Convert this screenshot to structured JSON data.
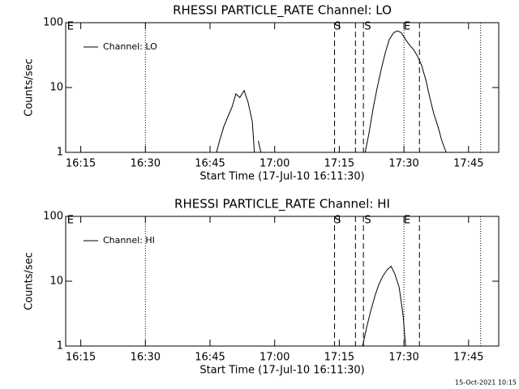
{
  "chart_data": [
    {
      "type": "line",
      "title": "RHESSI PARTICLE_RATE Channel: LO",
      "xlabel": "Start Time (17-Jul-10 16:11:30)",
      "ylabel": "Counts/sec",
      "xlim": [
        971.5,
        1072
      ],
      "xticks": [
        {
          "value": 975,
          "label": "16:15"
        },
        {
          "value": 990,
          "label": "16:30"
        },
        {
          "value": 1005,
          "label": "16:45"
        },
        {
          "value": 1020,
          "label": "17:00"
        },
        {
          "value": 1035,
          "label": "17:15"
        },
        {
          "value": 1050,
          "label": "17:30"
        },
        {
          "value": 1065,
          "label": "17:45"
        }
      ],
      "ylim": [
        1,
        100
      ],
      "yticks": [
        1,
        10,
        100
      ],
      "log_y": true,
      "legend": "upper left",
      "vlines": [
        {
          "x": 990,
          "style": "dotted"
        },
        {
          "x": 1033.9,
          "style": "dashed"
        },
        {
          "x": 1038.75,
          "style": "dashed"
        },
        {
          "x": 1040.6,
          "style": "dashed"
        },
        {
          "x": 1050,
          "style": "dotted"
        },
        {
          "x": 1053.6,
          "style": "dashed"
        },
        {
          "x": 1067.8,
          "style": "dotted"
        }
      ],
      "flags": [
        {
          "x": 972.6,
          "label": "E"
        },
        {
          "x": 1034.6,
          "label": "S"
        },
        {
          "x": 1041.6,
          "label": "S"
        },
        {
          "x": 1050.75,
          "label": "E"
        }
      ],
      "series": [
        {
          "name": "Channel: LO",
          "color": "#000000",
          "x": [
            1006.5,
            1007.2,
            1008.2,
            1009.1,
            1010.1,
            1011,
            1011.9,
            1012.9,
            1013.8,
            1014.8,
            1015.3,
            1015.8,
            1016.2,
            1016.8,
            1040.9,
            1041,
            1041.9,
            1042.9,
            1043.8,
            1044.8,
            1045.7,
            1046.6,
            1047.6,
            1048.5,
            1049.4,
            1050.4,
            1051.3,
            1052.3,
            1053.2,
            1054.1,
            1055.1,
            1056,
            1056.9,
            1057.9,
            1058.8,
            1059.8
          ],
          "values": [
            1,
            1.5,
            2.5,
            3.5,
            5,
            8,
            7,
            9,
            6,
            3,
            1,
            null,
            1.5,
            1,
            null,
            1,
            2,
            5,
            10,
            20,
            35,
            55,
            70,
            75,
            70,
            55,
            45,
            38,
            30,
            22,
            13,
            7,
            4,
            2.5,
            1.5,
            1
          ]
        }
      ]
    },
    {
      "type": "line",
      "title": "RHESSI PARTICLE_RATE Channel: HI",
      "xlabel": "Start Time (17-Jul-10 16:11:30)",
      "ylabel": "Counts/sec",
      "xlim": [
        971.5,
        1072
      ],
      "xticks": [
        {
          "value": 975,
          "label": "16:15"
        },
        {
          "value": 990,
          "label": "16:30"
        },
        {
          "value": 1005,
          "label": "16:45"
        },
        {
          "value": 1020,
          "label": "17:00"
        },
        {
          "value": 1035,
          "label": "17:15"
        },
        {
          "value": 1050,
          "label": "17:30"
        },
        {
          "value": 1065,
          "label": "17:45"
        }
      ],
      "ylim": [
        1,
        100
      ],
      "yticks": [
        1,
        10,
        100
      ],
      "log_y": true,
      "legend": "upper left",
      "vlines": [
        {
          "x": 990,
          "style": "dotted"
        },
        {
          "x": 1033.9,
          "style": "dashed"
        },
        {
          "x": 1038.75,
          "style": "dashed"
        },
        {
          "x": 1040.6,
          "style": "dashed"
        },
        {
          "x": 1050,
          "style": "dotted"
        },
        {
          "x": 1053.6,
          "style": "dashed"
        },
        {
          "x": 1067.8,
          "style": "dotted"
        }
      ],
      "flags": [
        {
          "x": 972.6,
          "label": "E"
        },
        {
          "x": 1034.6,
          "label": "S"
        },
        {
          "x": 1041.6,
          "label": "S"
        },
        {
          "x": 1050.75,
          "label": "E"
        }
      ],
      "series": [
        {
          "name": "Channel: HI",
          "color": "#000000",
          "x": [
            1040.4,
            1041.4,
            1042.3,
            1043.3,
            1044.2,
            1045.1,
            1046.1,
            1047,
            1047.9,
            1048.9,
            1049.8,
            1050.4
          ],
          "values": [
            1,
            2,
            3.5,
            6,
            9,
            12,
            15,
            17,
            13,
            8,
            3,
            1
          ]
        }
      ]
    }
  ],
  "footer": "15-Oct-2021 10:15"
}
